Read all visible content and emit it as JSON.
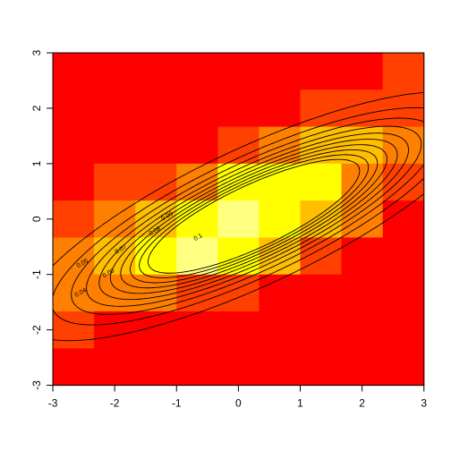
{
  "chart_data": {
    "type": "heatmap",
    "title": "",
    "xlabel": "",
    "ylabel": "",
    "xlim": [
      -3,
      3
    ],
    "ylim": [
      -3,
      3
    ],
    "x_ticks": [
      -3,
      -2,
      -1,
      0,
      1,
      2,
      3
    ],
    "y_ticks": [
      -3,
      -2,
      -1,
      0,
      1,
      2,
      3
    ],
    "x_tick_labels": [
      "-3",
      "-2",
      "-1",
      "0",
      "1",
      "2",
      "3"
    ],
    "y_tick_labels": [
      "-3",
      "-2",
      "-1",
      "0",
      "1",
      "2",
      "3"
    ],
    "grid": false,
    "legend": "none",
    "heatmap": {
      "x_bins": 9,
      "y_bins": 9,
      "colormap": "heat",
      "colors": [
        "#ff0000",
        "#ff4000",
        "#ff8000",
        "#ffbf00",
        "#ffff00",
        "#ffff80"
      ],
      "values_rows_top_to_bottom": [
        [
          0,
          0,
          0,
          0,
          0,
          0,
          0,
          0,
          1
        ],
        [
          0,
          0,
          0,
          0,
          0,
          0,
          1,
          1,
          1
        ],
        [
          0,
          0,
          0,
          0,
          1,
          2,
          3,
          3,
          2
        ],
        [
          0,
          1,
          1,
          2,
          4,
          4,
          4,
          2,
          1
        ],
        [
          1,
          2,
          3,
          4,
          5,
          4,
          3,
          2,
          0
        ],
        [
          2,
          3,
          4,
          5,
          4,
          3,
          1,
          0,
          0
        ],
        [
          2,
          2,
          2,
          1,
          1,
          0,
          0,
          0,
          0
        ],
        [
          1,
          0,
          0,
          0,
          0,
          0,
          0,
          0,
          0
        ],
        [
          0,
          0,
          0,
          0,
          0,
          0,
          0,
          0,
          0
        ]
      ]
    },
    "contours": {
      "mu": [
        0.25,
        0.05
      ],
      "sigma_x": 1.55,
      "sigma_y": 0.93,
      "rho": 0.8,
      "levels": [
        0.01,
        0.02,
        0.03,
        0.04,
        0.05,
        0.06,
        0.07,
        0.08,
        0.09,
        0.1
      ],
      "labels": [
        {
          "text": "0.04",
          "x": -2.55,
          "y": -1.33
        },
        {
          "text": "0.05",
          "x": -2.52,
          "y": -0.8
        },
        {
          "text": "0.06",
          "x": -2.1,
          "y": -0.98
        },
        {
          "text": "0.07",
          "x": -1.9,
          "y": -0.55
        },
        {
          "text": "0.08",
          "x": -1.35,
          "y": -0.22
        },
        {
          "text": "0.09",
          "x": -1.15,
          "y": 0.05
        },
        {
          "text": "0.1",
          "x": -0.65,
          "y": -0.33
        }
      ]
    }
  }
}
